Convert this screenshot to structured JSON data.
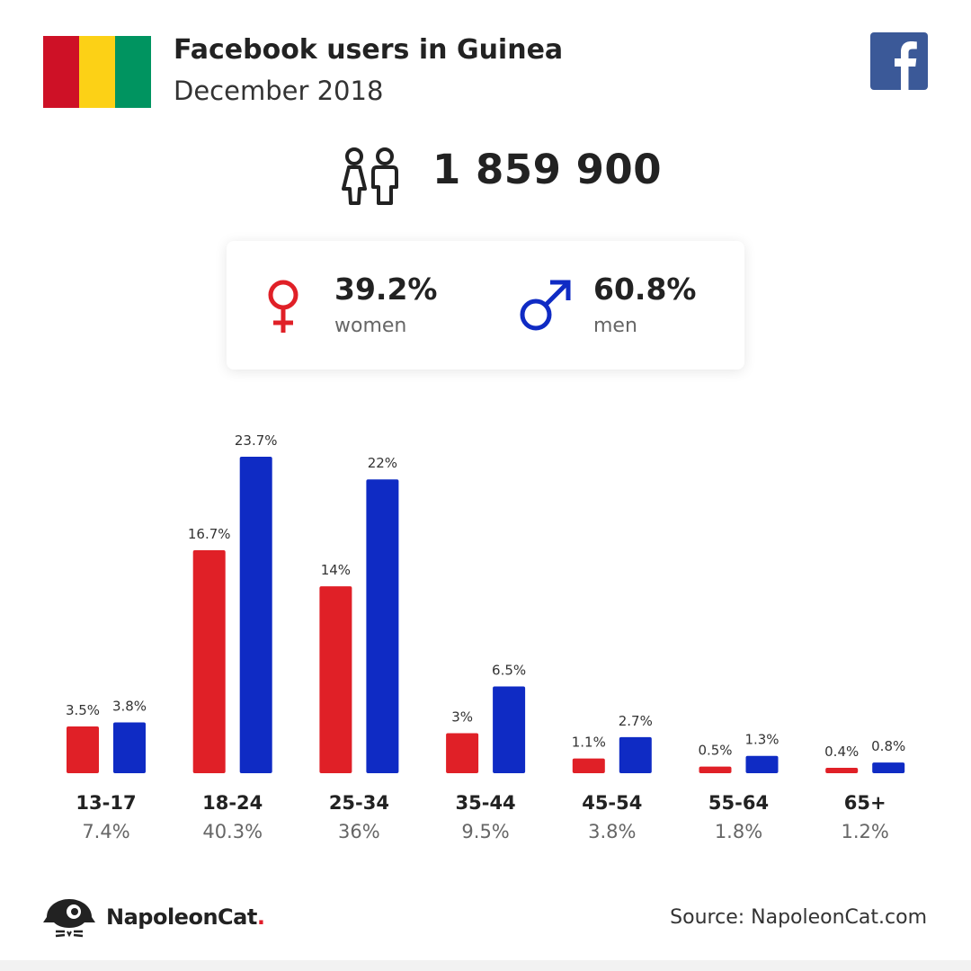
{
  "header": {
    "title": "Facebook users in Guinea",
    "subtitle": "December 2018"
  },
  "flag_colors": [
    "#ce1126",
    "#fcd116",
    "#009460"
  ],
  "icons": {
    "flag": "guinea-flag-icon",
    "facebook": "facebook-logo-icon",
    "users": "people-icon",
    "women": "female-symbol-icon",
    "men": "male-symbol-icon",
    "brand": "napoleoncat-logo-icon"
  },
  "total_users": "1 859 900",
  "gender": {
    "women": {
      "pct": "39.2%",
      "label": "women",
      "color": "#e02027"
    },
    "men": {
      "pct": "60.8%",
      "label": "men",
      "color": "#0f2bc4"
    }
  },
  "colors": {
    "women": "#e02027",
    "men": "#0f2bc4",
    "facebook": "#3b5998"
  },
  "chart_data": {
    "type": "bar",
    "categories": [
      "13-17",
      "18-24",
      "25-34",
      "35-44",
      "45-54",
      "55-64",
      "65+"
    ],
    "series": [
      {
        "name": "women",
        "values": [
          3.5,
          16.7,
          14,
          3,
          1.1,
          0.5,
          0.4
        ],
        "labels": [
          "3.5%",
          "16.7%",
          "14%",
          "3%",
          "1.1%",
          "0.5%",
          "0.4%"
        ]
      },
      {
        "name": "men",
        "values": [
          3.8,
          23.7,
          22,
          6.5,
          2.7,
          1.3,
          0.8
        ],
        "labels": [
          "3.8%",
          "23.7%",
          "22%",
          "6.5%",
          "2.7%",
          "1.3%",
          "0.8%"
        ]
      }
    ],
    "totals": [
      "7.4%",
      "40.3%",
      "36%",
      "9.5%",
      "3.8%",
      "1.8%",
      "1.2%"
    ],
    "ylim": [
      0,
      23.7
    ],
    "grid": false,
    "legend": "none"
  },
  "footer": {
    "brand_name": "NapoleonCat",
    "brand_dot": ".",
    "source": "Source: NapoleonCat.com"
  }
}
